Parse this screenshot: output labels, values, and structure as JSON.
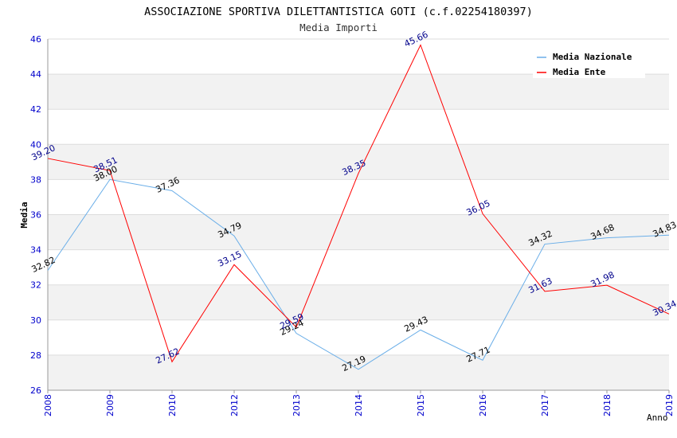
{
  "chart_data": {
    "type": "line",
    "title": "ASSOCIAZIONE SPORTIVA DILETTANTISTICA GOTI (c.f.02254180397)",
    "subtitle": "Media Importi",
    "xlabel": "Anno",
    "ylabel": "Media",
    "categories": [
      "2008",
      "2009",
      "2010",
      "2012",
      "2013",
      "2014",
      "2015",
      "2016",
      "2017",
      "2018",
      "2019"
    ],
    "ylim": [
      26,
      46
    ],
    "yticks": [
      "26",
      "28",
      "30",
      "32",
      "34",
      "36",
      "38",
      "40",
      "42",
      "44",
      "46"
    ],
    "grid": true,
    "legend_position": "top-right",
    "series": [
      {
        "name": "Media Nazionale",
        "color": "#6aaee8",
        "label_color": "#000000",
        "values": [
          32.82,
          38.0,
          37.36,
          34.79,
          29.24,
          27.19,
          29.43,
          27.71,
          34.32,
          34.68,
          34.83
        ],
        "labels": [
          "32.82",
          "38.00",
          "37.36",
          "34.79",
          "29.24",
          "27.19",
          "29.43",
          "27.71",
          "34.32",
          "34.68",
          "34.83"
        ]
      },
      {
        "name": "Media Ente",
        "color": "#ff0000",
        "label_color": "#00008b",
        "values": [
          39.2,
          38.51,
          27.62,
          33.15,
          29.59,
          38.35,
          45.66,
          36.05,
          31.63,
          31.98,
          30.34
        ],
        "labels": [
          "39.20",
          "38.51",
          "27.62",
          "33.15",
          "29.59",
          "38.35",
          "45.66",
          "36.05",
          "31.63",
          "31.98",
          "30.34"
        ]
      }
    ],
    "colors": {
      "axis_tick": "#0000cc",
      "band": "#f2f2f2",
      "grid": "#dddddd"
    }
  }
}
